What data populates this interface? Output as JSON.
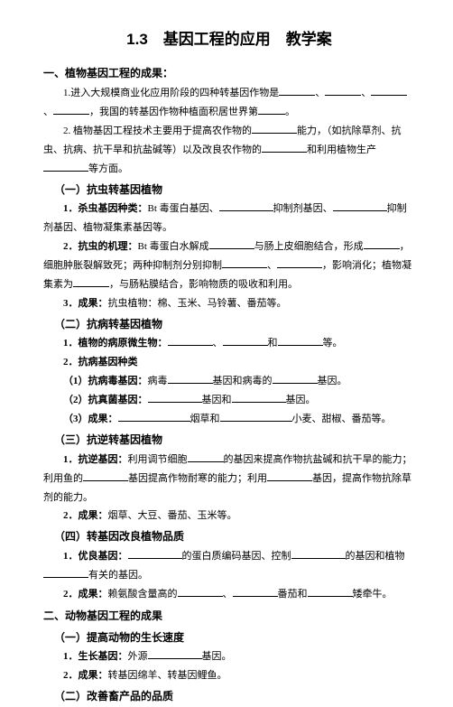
{
  "title": "1.3　基因工程的应用　教学案",
  "sec1": {
    "heading": "一、植物基因工程的成果：",
    "p1a": "1.进入大规模商业化应用阶段的四种转基因作物是",
    "p1b": "我国的转基因作物种植面积居世界第",
    "p1c": "。",
    "p2a": "2. 植物基因工程技术主要用于提高农作物的",
    "p2b": "能力，（如抗除草剂、抗虫、抗病、抗干旱和抗盐碱等）以及改良农作物的",
    "p2c": "和利用植物生产",
    "p2d": "等方面。"
  },
  "s11": {
    "heading": "（一）抗虫转基因植物",
    "i1a": "1．杀虫基因种类：",
    "i1b": "Bt 毒蛋白基因、",
    "i1c": "抑制剂基因、",
    "i1d": "抑制剂基因、植物凝集素基因等。",
    "i2a": "2．抗虫的机理：",
    "i2b": "Bt 毒蛋白水解成",
    "i2c": "与肠上皮细胞结合，形成",
    "i2d": "，细胞肿胀裂解致死；两种抑制剂分别抑制",
    "i2e": "、",
    "i2f": "，影响消化；植物凝集素为",
    "i2g": "，与肠粘膜结合，影响物质的吸收和利用。",
    "i3a": "3．成果：",
    "i3b": "抗虫植物：棉、玉米、马铃薯、番茄等。"
  },
  "s12": {
    "heading": "（二）抗病转基因植物",
    "i1a": "1．植物的病原微生物：",
    "i1b": "、",
    "i1c": "和",
    "i1d": "等。",
    "i2": "2．抗病基因种类",
    "i21a": "（1）抗病毒基因：",
    "i21b": "病毒",
    "i21c": "基因和病毒的",
    "i21d": "基因。",
    "i22a": "（2）抗真菌基因：",
    "i22b": "基因和",
    "i22c": "基因。",
    "i3a": "（3）成果：",
    "i3b": "烟草和",
    "i3c": "小麦、甜椒、番茄等。"
  },
  "s13": {
    "heading": "（三）抗逆转基因植物",
    "i1a": "1．抗逆基因：",
    "i1b": "利用调节细胞",
    "i1c": "的基因来提高作物抗盐碱和抗干旱的能力；利用鱼的",
    "i1d": "基因提高作物耐寒的能力；利用",
    "i1e": "基因，提高作物抗除草剂的能力。",
    "i2a": "2．成果：",
    "i2b": "烟草、大豆、番茄、玉米等。"
  },
  "s14": {
    "heading": "（四）转基因改良植物品质",
    "i1a": "1．优良基因：",
    "i1b": "的蛋白质编码基因、控制",
    "i1c": "的基因和植物",
    "i1d": "有关的基因。",
    "i2a": "2．成果：",
    "i2b": "赖氨酸含量高的",
    "i2c": "、",
    "i2d": "番茄和",
    "i2e": "矮牵牛。"
  },
  "sec2": {
    "heading": "二、动物基因工程的成果"
  },
  "s21": {
    "heading": "（一）提高动物的生长速度",
    "i1a": "1．生长基因：",
    "i1b": "外源",
    "i1c": "基因。",
    "i2a": "2．成果：",
    "i2b": "转基因绵羊、转基因鲤鱼。"
  },
  "s22": {
    "heading": "（二）改善畜产品的品质"
  }
}
